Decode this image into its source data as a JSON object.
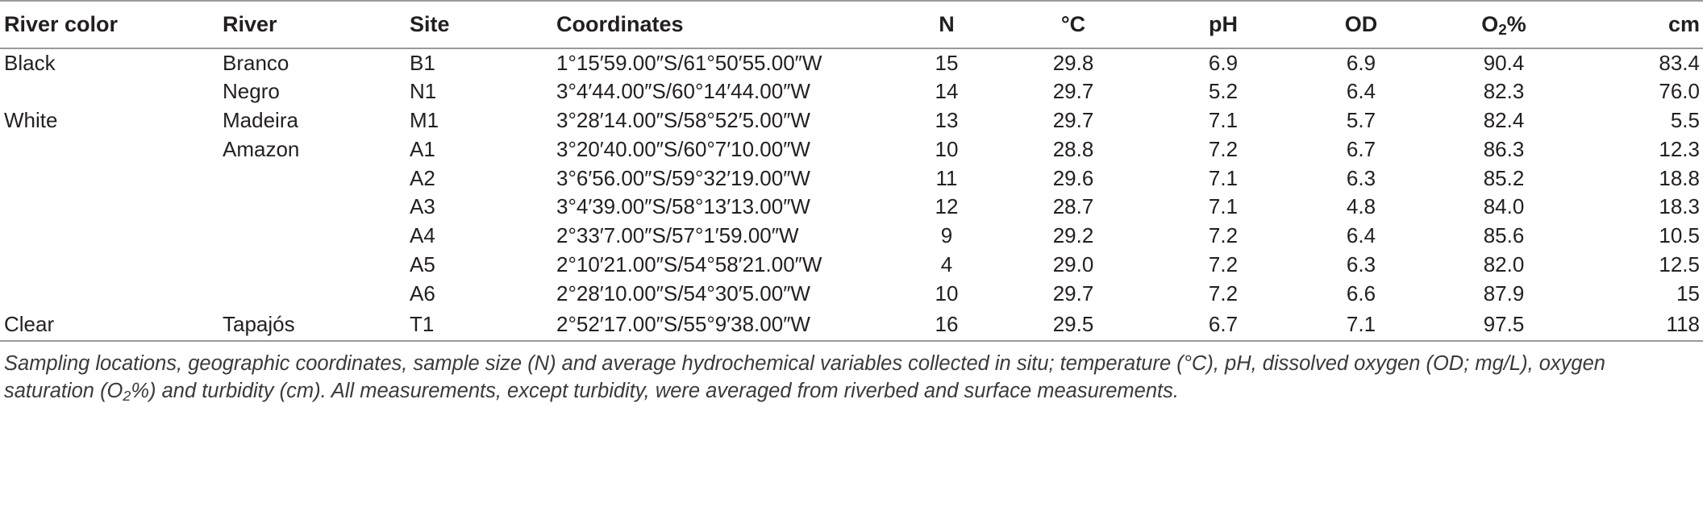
{
  "table": {
    "headers": {
      "river_color": "River color",
      "river": "River",
      "site": "Site",
      "coordinates": "Coordinates",
      "n": "N",
      "temp": "°C",
      "ph": "pH",
      "od": "OD",
      "o2_prefix": "O",
      "o2_sub": "2",
      "o2_suffix": "%",
      "cm": "cm"
    },
    "rows": [
      {
        "river_color": "Black",
        "river": "Branco",
        "site": "B1",
        "coordinates": "1°15′59.00″S/61°50′55.00″W",
        "n": "15",
        "temp": "29.8",
        "ph": "6.9",
        "od": "6.9",
        "o2": "90.4",
        "cm": "83.4"
      },
      {
        "river_color": "",
        "river": "Negro",
        "site": "N1",
        "coordinates": "3°4′44.00″S/60°14′44.00″W",
        "n": "14",
        "temp": "29.7",
        "ph": "5.2",
        "od": "6.4",
        "o2": "82.3",
        "cm": "76.0"
      },
      {
        "river_color": "White",
        "river": "Madeira",
        "site": "M1",
        "coordinates": "3°28′14.00″S/58°52′5.00″W",
        "n": "13",
        "temp": "29.7",
        "ph": "7.1",
        "od": "5.7",
        "o2": "82.4",
        "cm": "5.5"
      },
      {
        "river_color": "",
        "river": "Amazon",
        "site": "A1",
        "coordinates": "3°20′40.00″S/60°7′10.00″W",
        "n": "10",
        "temp": "28.8",
        "ph": "7.2",
        "od": "6.7",
        "o2": "86.3",
        "cm": "12.3"
      },
      {
        "river_color": "",
        "river": "",
        "site": "A2",
        "coordinates": "3°6′56.00″S/59°32′19.00″W",
        "n": "11",
        "temp": "29.6",
        "ph": "7.1",
        "od": "6.3",
        "o2": "85.2",
        "cm": "18.8"
      },
      {
        "river_color": "",
        "river": "",
        "site": "A3",
        "coordinates": "3°4′39.00″S/58°13′13.00″W",
        "n": "12",
        "temp": "28.7",
        "ph": "7.1",
        "od": "4.8",
        "o2": "84.0",
        "cm": "18.3"
      },
      {
        "river_color": "",
        "river": "",
        "site": "A4",
        "coordinates": "2°33′7.00″S/57°1′59.00″W",
        "n": "9",
        "temp": "29.2",
        "ph": "7.2",
        "od": "6.4",
        "o2": "85.6",
        "cm": "10.5"
      },
      {
        "river_color": "",
        "river": "",
        "site": "A5",
        "coordinates": "2°10′21.00″S/54°58′21.00″W",
        "n": "4",
        "temp": "29.0",
        "ph": "7.2",
        "od": "6.3",
        "o2": "82.0",
        "cm": "12.5"
      },
      {
        "river_color": "",
        "river": "",
        "site": "A6",
        "coordinates": "2°28′10.00″S/54°30′5.00″W",
        "n": "10",
        "temp": "29.7",
        "ph": "7.2",
        "od": "6.6",
        "o2": "87.9",
        "cm": "15"
      },
      {
        "river_color": "Clear",
        "river": "Tapajós",
        "site": "T1",
        "coordinates": "2°52′17.00″S/55°9′38.00″W",
        "n": "16",
        "temp": "29.5",
        "ph": "6.7",
        "od": "7.1",
        "o2": "97.5",
        "cm": "118"
      }
    ]
  },
  "caption": {
    "part1": "Sampling locations, geographic coordinates, sample size (N) and average hydrochemical variables collected in situ; temperature (°C), pH, dissolved oxygen (OD; mg/L), oxygen saturation (O",
    "sub": "2",
    "part2": "%) and turbidity (cm). All measurements, except turbidity, were averaged from riverbed and surface measurements."
  }
}
